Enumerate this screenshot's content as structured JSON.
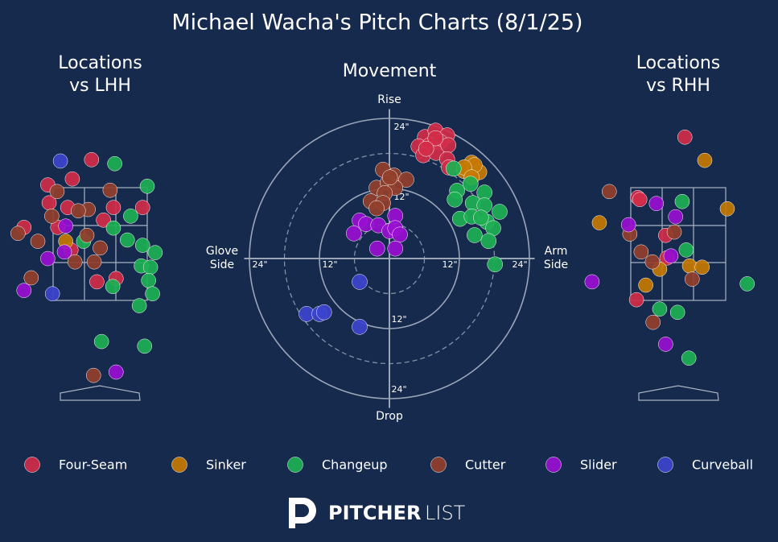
{
  "title": "Michael Wacha's Pitch Charts (8/1/25)",
  "logo": [
    "PITCHER",
    "LIST"
  ],
  "chart_data": [
    {
      "type": "location",
      "title": [
        "Locations",
        "vs LHH"
      ],
      "xlim": [
        -1.5,
        1.5
      ],
      "ylim": [
        -0.04,
        4.2
      ],
      "series": [
        {
          "name": "Four-Seam",
          "x": [
            -0.13,
            -0.42,
            -0.79,
            -0.77,
            -0.49,
            0.2,
            0.64,
            0.05,
            -1.15,
            -0.64,
            -0.44,
            -0.05,
            0.24
          ],
          "y": [
            3.62,
            3.33,
            3.24,
            2.97,
            2.9,
            2.9,
            2.9,
            2.71,
            2.6,
            2.6,
            2.26,
            1.78,
            1.83
          ]
        },
        {
          "name": "Sinker",
          "x": [
            -0.52
          ],
          "y": [
            2.39
          ]
        },
        {
          "name": "Changeup",
          "x": [
            0.22,
            0.71,
            0.46,
            0.2,
            -0.25,
            0.41,
            0.64,
            0.83,
            0.62,
            0.76,
            0.73,
            0.19,
            0.79,
            0.59,
            0.02,
            0.67
          ],
          "y": [
            3.56,
            3.22,
            2.77,
            2.59,
            2.39,
            2.41,
            2.33,
            2.22,
            2.02,
            2.0,
            1.8,
            1.71,
            1.6,
            1.42,
            0.88,
            0.81
          ]
        },
        {
          "name": "Cutter",
          "x": [
            -0.65,
            0.15,
            -0.18,
            -0.33,
            -0.73,
            -1.24,
            -0.94,
            -0.2,
            0.0,
            -0.38,
            -0.09,
            -1.04,
            -0.1
          ],
          "y": [
            3.14,
            3.16,
            2.87,
            2.85,
            2.77,
            2.51,
            2.39,
            2.48,
            2.29,
            2.08,
            2.08,
            1.84,
            0.37
          ]
        },
        {
          "name": "Slider",
          "x": [
            -0.52,
            -0.79,
            -1.15,
            0.24,
            -0.54
          ],
          "y": [
            2.62,
            2.13,
            1.65,
            0.42,
            2.23
          ]
        },
        {
          "name": "Curveball",
          "x": [
            -0.6,
            -0.72
          ],
          "y": [
            3.6,
            1.6
          ]
        }
      ]
    },
    {
      "type": "movement",
      "title": "Movement",
      "top": "Rise",
      "bottom": "Drop",
      "left": [
        "Glove",
        "Side"
      ],
      "right": [
        "Arm",
        "Side"
      ],
      "xlim": [
        -26,
        26
      ],
      "ylim": [
        -26,
        26
      ],
      "rings": [
        {
          "value": 12,
          "label": "12\""
        },
        {
          "value": 24,
          "label": "24\""
        }
      ],
      "minor_rings": [
        6,
        18
      ],
      "series": [
        {
          "name": "Four-Seam",
          "color": "#d22d49",
          "x": [
            6.1,
            7.9,
            9.9,
            5.0,
            6.9,
            8.7,
            5.8,
            8.0,
            10.1,
            9.9,
            10.2,
            7.9,
            6.3
          ],
          "y": [
            20.8,
            21.9,
            21.1,
            19.2,
            19.4,
            20.0,
            17.7,
            18.1,
            19.4,
            17.0,
            15.6,
            20.6,
            18.8
          ]
        },
        {
          "name": "Sinker",
          "color": "#c57a02",
          "x": [
            14.1,
            12.8,
            15.4,
            14.6,
            12.8,
            14.1
          ],
          "y": [
            16.4,
            15.0,
            14.8,
            16.0,
            15.6,
            13.9
          ]
        },
        {
          "name": "Changeup",
          "color": "#1db053",
          "x": [
            11.0,
            11.6,
            13.9,
            16.3,
            11.2,
            14.3,
            16.3,
            18.9,
            12.1,
            14.1,
            16.7,
            17.8,
            14.6,
            17.0,
            18.1,
            15.7
          ],
          "y": [
            15.4,
            11.6,
            12.8,
            11.3,
            10.1,
            9.5,
            9.1,
            8.0,
            6.8,
            7.2,
            6.3,
            5.2,
            4.0,
            3.0,
            -1.0,
            7.0
          ]
        },
        {
          "name": "Cutter",
          "color": "#933f2c",
          "x": [
            -1.1,
            0.8,
            2.9,
            -2.2,
            -0.3,
            1.0,
            -0.8,
            -3.2,
            -1.1,
            -2.2,
            0.1
          ],
          "y": [
            15.2,
            14.2,
            13.5,
            12.1,
            13.0,
            12.1,
            11.2,
            9.8,
            9.5,
            8.6,
            13.9
          ]
        },
        {
          "name": "Slider",
          "color": "#9a0fd1",
          "x": [
            -5.1,
            -4.0,
            1.0,
            -1.9,
            0.0,
            1.0,
            -6.1,
            1.8,
            -2.1,
            1.0
          ],
          "y": [
            6.5,
            5.9,
            7.3,
            5.7,
            4.7,
            5.2,
            4.3,
            4.1,
            1.7,
            1.7
          ]
        },
        {
          "name": "Curveball",
          "color": "#3c44cd",
          "x": [
            -5.1,
            -14.2,
            -12.0,
            -11.2,
            -5.1
          ],
          "y": [
            -4.0,
            -9.5,
            -9.5,
            -9.2,
            -11.7
          ]
        }
      ]
    },
    {
      "type": "location",
      "title": [
        "Locations",
        "vs RHH"
      ],
      "xlim": [
        -1.5,
        1.5
      ],
      "ylim": [
        -0.04,
        4.2
      ],
      "series": [
        {
          "name": "Four-Seam",
          "x": [
            0.1,
            -0.61,
            -0.58,
            -0.19,
            -0.17,
            -0.63
          ],
          "y": [
            3.96,
            3.05,
            3.02,
            2.48,
            2.14,
            1.51
          ]
        },
        {
          "name": "Sinker",
          "x": [
            0.4,
            0.74,
            -1.19,
            -0.28,
            0.17,
            0.36,
            -0.49
          ],
          "y": [
            3.61,
            2.88,
            2.67,
            1.97,
            2.02,
            2.0,
            1.73
          ]
        },
        {
          "name": "Changeup",
          "x": [
            0.06,
            0.12,
            1.04,
            -0.28,
            -0.01,
            0.16
          ],
          "y": [
            2.99,
            2.26,
            1.75,
            1.37,
            1.32,
            0.63
          ]
        },
        {
          "name": "Cutter",
          "x": [
            -1.04,
            -0.73,
            -0.06,
            -0.56,
            -0.39,
            0.21,
            -0.38
          ],
          "y": [
            3.14,
            2.5,
            2.53,
            2.23,
            2.08,
            1.82,
            1.17
          ]
        },
        {
          "name": "Slider",
          "x": [
            -0.33,
            -0.04,
            -0.75,
            -0.11,
            -1.3,
            -0.19
          ],
          "y": [
            2.96,
            2.76,
            2.64,
            2.17,
            1.78,
            0.84
          ]
        }
      ]
    }
  ]
}
